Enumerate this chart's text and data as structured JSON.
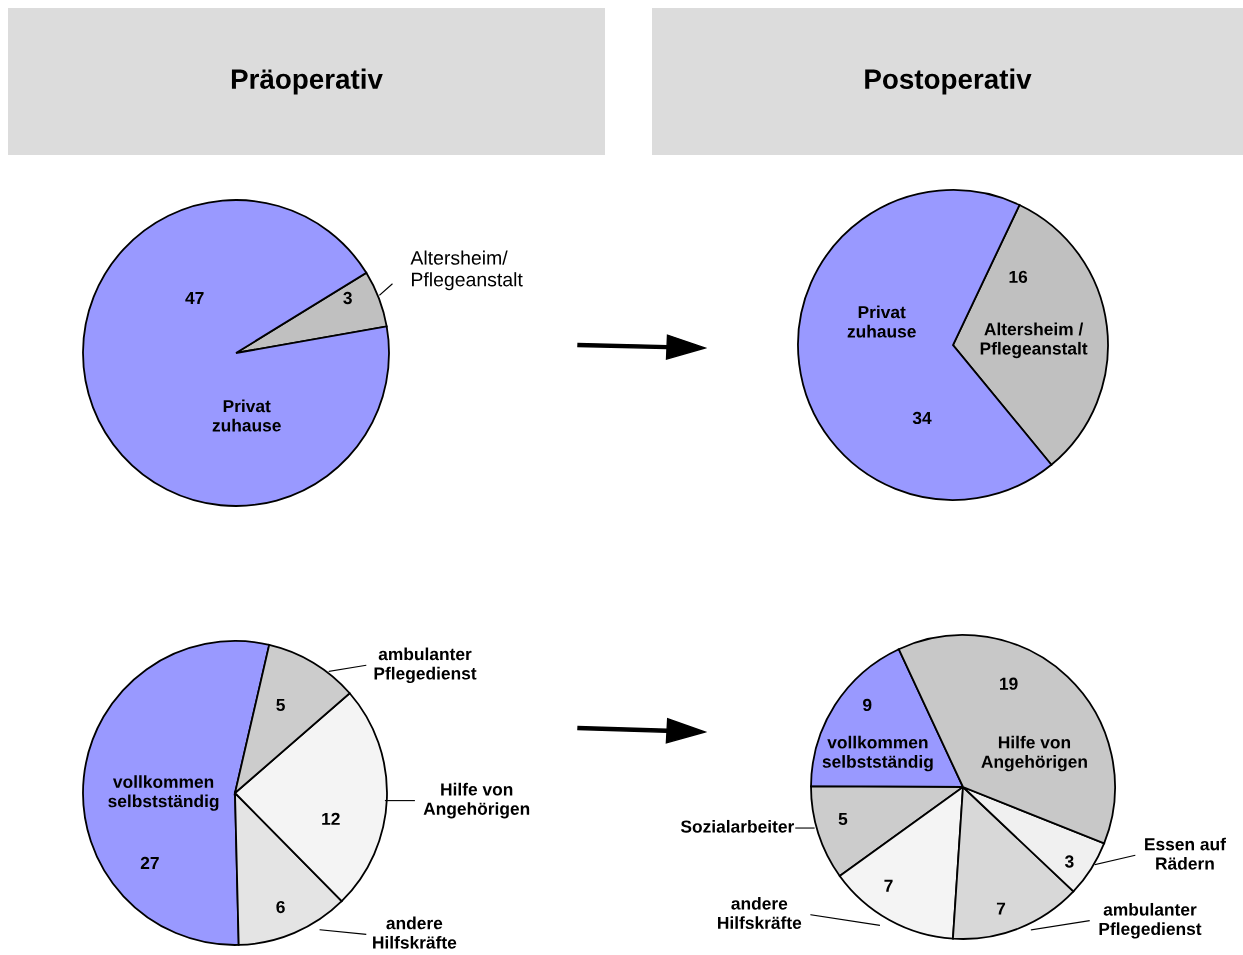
{
  "chart_data": [
    {
      "type": "pie",
      "title": "Präoperativ",
      "categories": [
        "Altersheim/\nPflegeanstalt",
        "Privat\nzuhause"
      ],
      "values": [
        3,
        47
      ],
      "colors": [
        "#c0c0c0",
        "#9999ff"
      ],
      "data_labels": true
    },
    {
      "type": "pie",
      "title": "Postoperativ",
      "categories": [
        "Altersheim /\nPflegeanstalt",
        "Privat\nzuhause"
      ],
      "values": [
        16,
        34
      ],
      "colors": [
        "#c0c0c0",
        "#9999ff"
      ],
      "data_labels": true
    },
    {
      "type": "pie",
      "categories": [
        "vollkommen\nselbstständig",
        "andere\nHilfskräfte",
        "Hilfe von\nAngehörigen",
        "ambulanter\nPflegedienst"
      ],
      "values": [
        27,
        6,
        12,
        5
      ],
      "colors": [
        "#9999ff",
        "#e4e4e4",
        "#f4f4f4",
        "#cccccc"
      ],
      "data_labels": true
    },
    {
      "type": "pie",
      "categories": [
        "vollkommen\nselbstständig",
        "Sozialarbeiter",
        "andere\nHilfskräfte",
        "ambulanter\nPflegedienst",
        "Essen auf\nRädern",
        "Hilfe von\nAngehörigen"
      ],
      "values": [
        9,
        5,
        7,
        7,
        3,
        19
      ],
      "colors": [
        "#9999ff",
        "#cccccc",
        "#f4f4f4",
        "#d8d8d8",
        "#f0f0f0",
        "#c8c8c8"
      ],
      "data_labels": true
    }
  ]
}
